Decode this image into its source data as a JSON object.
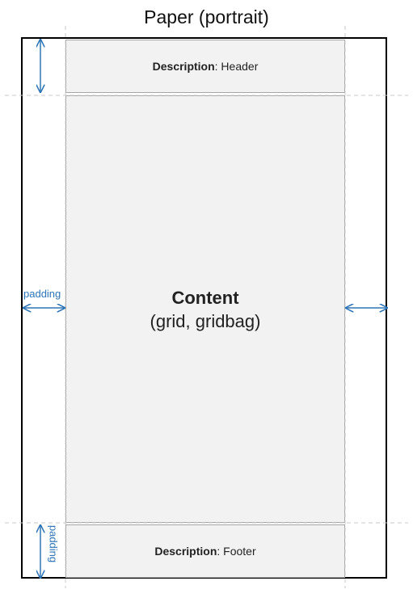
{
  "title": "Paper (portrait)",
  "header": {
    "label": "Description",
    "text": ": Header"
  },
  "content": {
    "title": "Content",
    "subtitle": "(grid, gridbag)"
  },
  "footer": {
    "label": "Description",
    "text": ": Footer"
  },
  "padding_labels": {
    "left": "padding",
    "bottom": "padding"
  },
  "colors": {
    "arrow": "#2e75b6",
    "box_fill": "#f2f2f2",
    "box_border": "#a6a6a6",
    "guide": "#c8c8c8"
  }
}
